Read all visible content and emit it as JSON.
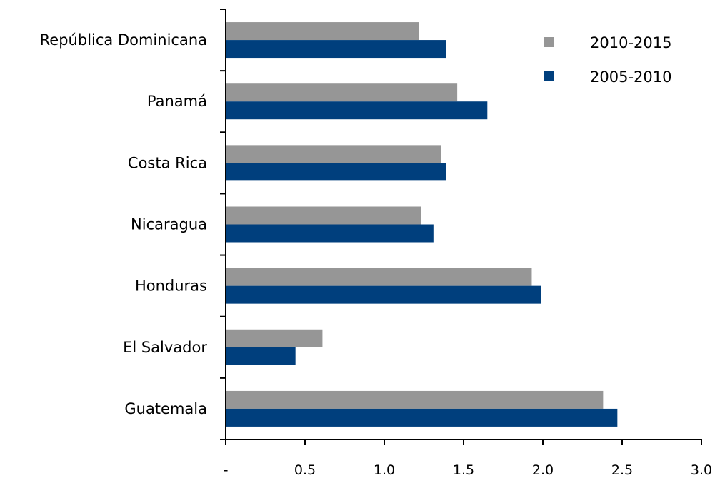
{
  "chart_data": {
    "type": "bar",
    "orientation": "horizontal",
    "categories": [
      "República Dominicana",
      "Panamá",
      "Costa Rica",
      "Nicaragua",
      "Honduras",
      "El Salvador",
      "Guatemala"
    ],
    "series": [
      {
        "name": "2010-2015",
        "color": "#969696",
        "values": [
          1.22,
          1.46,
          1.36,
          1.23,
          1.93,
          0.61,
          2.38
        ]
      },
      {
        "name": "2005-2010",
        "color": "#003f7d",
        "values": [
          1.39,
          1.65,
          1.39,
          1.31,
          1.99,
          0.44,
          2.47
        ]
      }
    ],
    "xlim": [
      0,
      3.0
    ],
    "x_ticks": [
      0,
      0.5,
      1.0,
      1.5,
      2.0,
      2.5,
      3.0
    ],
    "x_tick_labels": [
      "-",
      "0.5",
      "1.0",
      "1.5",
      "2.0",
      "2.5",
      "3.0"
    ],
    "legend_position": "top-right",
    "grid": false
  }
}
